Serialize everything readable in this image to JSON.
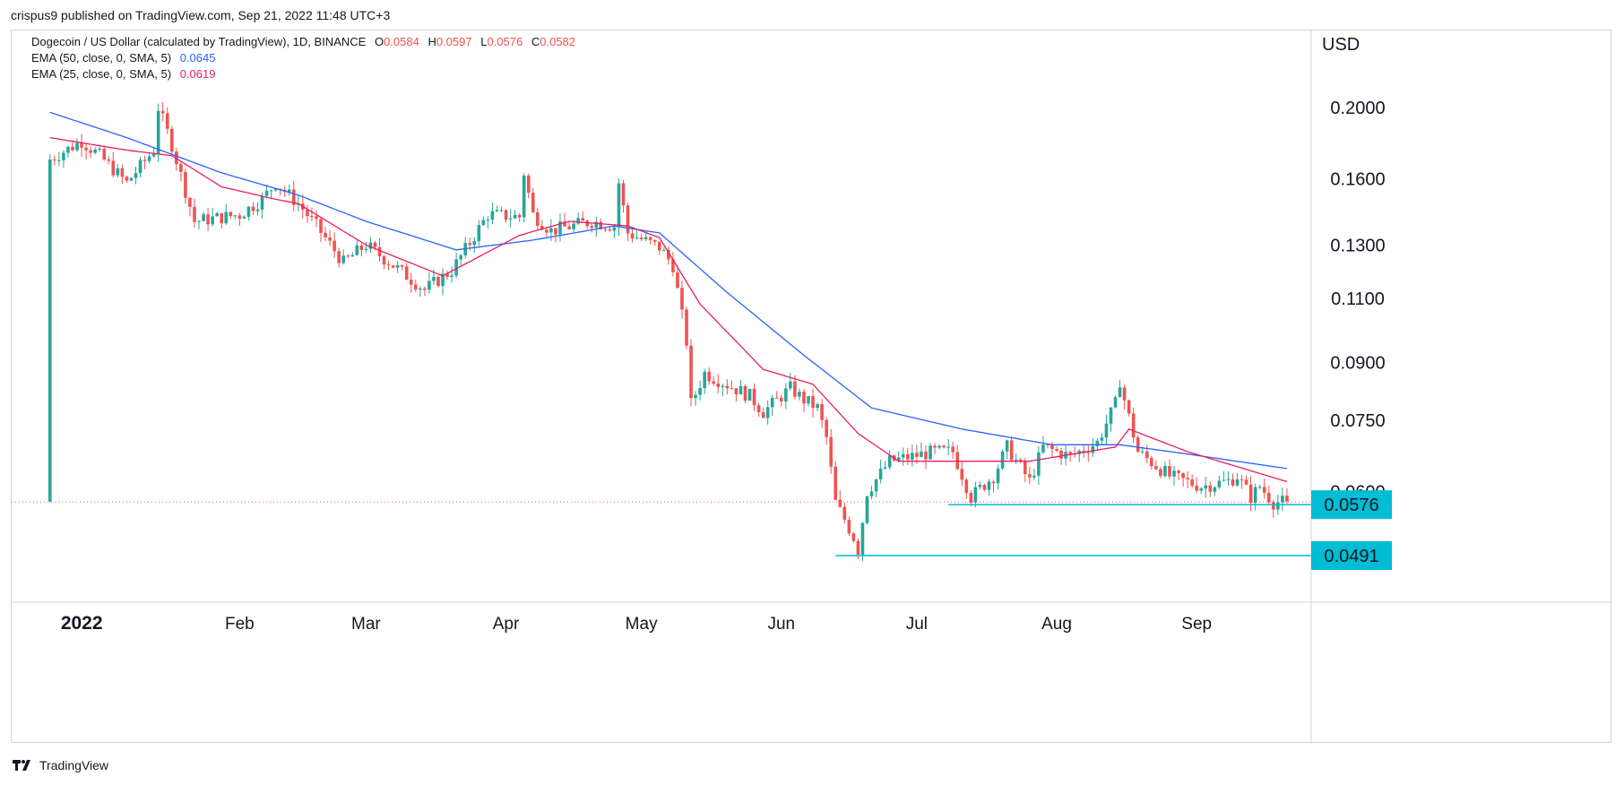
{
  "header": {
    "published": "crispus9 published on TradingView.com, Sep 21, 2022 11:48 UTC+3"
  },
  "legend": {
    "symbol": "Dogecoin / US Dollar (calculated by TradingView), 1D, BINANCE",
    "ohlc": {
      "O": "0.0584",
      "H": "0.0597",
      "L": "0.0576",
      "C": "0.0582"
    },
    "ema50": {
      "label": "EMA (50, close, 0, SMA, 5)",
      "value": "0.0645",
      "color": "#2962ff"
    },
    "ema25": {
      "label": "EMA (25, close, 0, SMA, 5)",
      "value": "0.0619",
      "color": "#e91e63"
    }
  },
  "footer": {
    "brand": "TradingView"
  },
  "colors": {
    "up": "#26a69a",
    "down": "#ef5350",
    "support": "#00bcd4",
    "axis": "#131722",
    "border": "#d1d4dc"
  },
  "chart_data": {
    "type": "candlestick",
    "scale": "log",
    "ylabel": "USD",
    "yticks": [
      "0.2000",
      "0.1600",
      "0.1300",
      "0.1100",
      "0.0900",
      "0.0750",
      "0.0600"
    ],
    "xticks": [
      {
        "label": "2022",
        "date": "2022-01-01",
        "bold": true
      },
      {
        "label": "Feb",
        "date": "2022-02-01"
      },
      {
        "label": "Mar",
        "date": "2022-03-01"
      },
      {
        "label": "Apr",
        "date": "2022-04-01"
      },
      {
        "label": "May",
        "date": "2022-05-01"
      },
      {
        "label": "Jun",
        "date": "2022-06-01"
      },
      {
        "label": "Jul",
        "date": "2022-07-01"
      },
      {
        "label": "Aug",
        "date": "2022-08-01"
      },
      {
        "label": "Sep",
        "date": "2022-09-01"
      }
    ],
    "current_price": {
      "value": 0.0576,
      "label": "0.0576"
    },
    "support_levels": [
      {
        "value": 0.0576,
        "label": "0.0576",
        "from": "2022-07-08",
        "to": "2022-09-21"
      },
      {
        "value": 0.0491,
        "label": "0.0491",
        "from": "2022-06-13",
        "to": "2022-09-21"
      }
    ],
    "close_anchors": [
      [
        "2021-12-21",
        0.17
      ],
      [
        "2021-12-28",
        0.18
      ],
      [
        "2022-01-01",
        0.172
      ],
      [
        "2022-01-07",
        0.158
      ],
      [
        "2022-01-13",
        0.175
      ],
      [
        "2022-01-14",
        0.2
      ],
      [
        "2022-01-17",
        0.178
      ],
      [
        "2022-01-22",
        0.14
      ],
      [
        "2022-02-01",
        0.143
      ],
      [
        "2022-02-06",
        0.15
      ],
      [
        "2022-02-09",
        0.158
      ],
      [
        "2022-02-14",
        0.148
      ],
      [
        "2022-02-18",
        0.138
      ],
      [
        "2022-02-24",
        0.123
      ],
      [
        "2022-03-01",
        0.13
      ],
      [
        "2022-03-07",
        0.122
      ],
      [
        "2022-03-14",
        0.113
      ],
      [
        "2022-03-20",
        0.12
      ],
      [
        "2022-03-28",
        0.143
      ],
      [
        "2022-04-04",
        0.142
      ],
      [
        "2022-04-05",
        0.163
      ],
      [
        "2022-04-07",
        0.143
      ],
      [
        "2022-04-11",
        0.136
      ],
      [
        "2022-04-20",
        0.14
      ],
      [
        "2022-04-25",
        0.138
      ],
      [
        "2022-04-26",
        0.158
      ],
      [
        "2022-04-28",
        0.135
      ],
      [
        "2022-05-05",
        0.129
      ],
      [
        "2022-05-08",
        0.122
      ],
      [
        "2022-05-11",
        0.096
      ],
      [
        "2022-05-12",
        0.079
      ],
      [
        "2022-05-15",
        0.087
      ],
      [
        "2022-05-25",
        0.081
      ],
      [
        "2022-05-28",
        0.077
      ],
      [
        "2022-06-03",
        0.083
      ],
      [
        "2022-06-06",
        0.08
      ],
      [
        "2022-06-09",
        0.078
      ],
      [
        "2022-06-11",
        0.071
      ],
      [
        "2022-06-13",
        0.058
      ],
      [
        "2022-06-15",
        0.055
      ],
      [
        "2022-06-17",
        0.052
      ],
      [
        "2022-06-18",
        0.05
      ],
      [
        "2022-06-20",
        0.06
      ],
      [
        "2022-06-25",
        0.066
      ],
      [
        "2022-06-30",
        0.067
      ],
      [
        "2022-07-05",
        0.068
      ],
      [
        "2022-07-09",
        0.068
      ],
      [
        "2022-07-13",
        0.059
      ],
      [
        "2022-07-18",
        0.063
      ],
      [
        "2022-07-21",
        0.069
      ],
      [
        "2022-07-26",
        0.062
      ],
      [
        "2022-07-29",
        0.069
      ],
      [
        "2022-08-04",
        0.067
      ],
      [
        "2022-08-10",
        0.07
      ],
      [
        "2022-08-14",
        0.079
      ],
      [
        "2022-08-15",
        0.085
      ],
      [
        "2022-08-16",
        0.08
      ],
      [
        "2022-08-19",
        0.068
      ],
      [
        "2022-08-26",
        0.063
      ],
      [
        "2022-09-02",
        0.061
      ],
      [
        "2022-09-08",
        0.062
      ],
      [
        "2022-09-10",
        0.063
      ],
      [
        "2022-09-13",
        0.059
      ],
      [
        "2022-09-15",
        0.061
      ],
      [
        "2022-09-18",
        0.058
      ],
      [
        "2022-09-21",
        0.0582
      ]
    ],
    "ema50": [
      [
        "2021-12-21",
        0.197
      ],
      [
        "2022-01-07",
        0.182
      ],
      [
        "2022-01-28",
        0.163
      ],
      [
        "2022-02-14",
        0.152
      ],
      [
        "2022-03-01",
        0.14
      ],
      [
        "2022-03-21",
        0.128
      ],
      [
        "2022-04-07",
        0.132
      ],
      [
        "2022-04-25",
        0.138
      ],
      [
        "2022-05-05",
        0.135
      ],
      [
        "2022-05-20",
        0.112
      ],
      [
        "2022-06-06",
        0.092
      ],
      [
        "2022-06-21",
        0.078
      ],
      [
        "2022-07-11",
        0.073
      ],
      [
        "2022-07-31",
        0.0695
      ],
      [
        "2022-08-15",
        0.0695
      ],
      [
        "2022-08-30",
        0.0675
      ],
      [
        "2022-09-21",
        0.0645
      ]
    ],
    "ema25": [
      [
        "2021-12-21",
        0.182
      ],
      [
        "2022-01-07",
        0.175
      ],
      [
        "2022-01-17",
        0.172
      ],
      [
        "2022-01-28",
        0.156
      ],
      [
        "2022-02-09",
        0.15
      ],
      [
        "2022-02-14",
        0.148
      ],
      [
        "2022-03-01",
        0.13
      ],
      [
        "2022-03-18",
        0.118
      ],
      [
        "2022-04-04",
        0.134
      ],
      [
        "2022-04-15",
        0.14
      ],
      [
        "2022-04-28",
        0.138
      ],
      [
        "2022-05-05",
        0.133
      ],
      [
        "2022-05-14",
        0.108
      ],
      [
        "2022-05-28",
        0.088
      ],
      [
        "2022-06-08",
        0.084
      ],
      [
        "2022-06-18",
        0.072
      ],
      [
        "2022-06-27",
        0.066
      ],
      [
        "2022-07-10",
        0.066
      ],
      [
        "2022-07-26",
        0.066
      ],
      [
        "2022-08-14",
        0.069
      ],
      [
        "2022-08-17",
        0.073
      ],
      [
        "2022-08-30",
        0.068
      ],
      [
        "2022-09-21",
        0.0619
      ]
    ]
  }
}
